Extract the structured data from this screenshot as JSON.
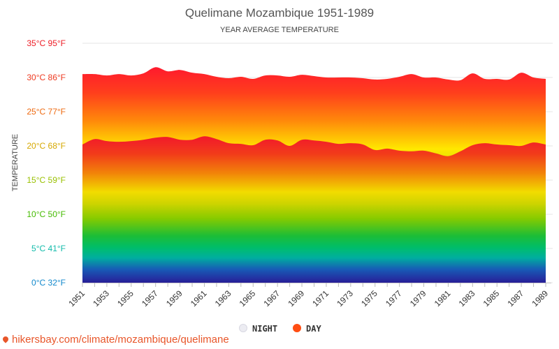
{
  "chart_data": {
    "type": "area",
    "title": "Quelimane Mozambique 1951-1989",
    "subtitle": "YEAR AVERAGE TEMPERATURE",
    "ylabel": "TEMPERATURE",
    "ylim": [
      0,
      35
    ],
    "yticks": [
      {
        "value": 35,
        "label": "35°C 95°F",
        "color": "#ee1c25"
      },
      {
        "value": 30,
        "label": "30°C 86°F",
        "color": "#ee3a20"
      },
      {
        "value": 25,
        "label": "25°C 77°F",
        "color": "#ee6a10"
      },
      {
        "value": 20,
        "label": "20°C 68°F",
        "color": "#d6a800"
      },
      {
        "value": 15,
        "label": "15°C 59°F",
        "color": "#99c000"
      },
      {
        "value": 10,
        "label": "10°C 50°F",
        "color": "#44bb00"
      },
      {
        "value": 5,
        "label": "5°C 41°F",
        "color": "#11bbaa"
      },
      {
        "value": 0,
        "label": "0°C 32°F",
        "color": "#1188cc"
      }
    ],
    "x": [
      1951,
      1952,
      1953,
      1954,
      1955,
      1956,
      1957,
      1958,
      1959,
      1960,
      1961,
      1962,
      1963,
      1964,
      1965,
      1966,
      1967,
      1968,
      1969,
      1970,
      1971,
      1972,
      1973,
      1974,
      1975,
      1976,
      1977,
      1978,
      1979,
      1980,
      1981,
      1982,
      1983,
      1984,
      1985,
      1986,
      1987,
      1988,
      1989
    ],
    "xtick_labels": [
      "1951",
      "1953",
      "1955",
      "1957",
      "1959",
      "1961",
      "1963",
      "1965",
      "1967",
      "1969",
      "1971",
      "1973",
      "1975",
      "1977",
      "1979",
      "1981",
      "1983",
      "1985",
      "1987",
      "1989"
    ],
    "series": [
      {
        "name": "DAY",
        "color": "#ff4d12",
        "values": [
          30.5,
          30.5,
          30.3,
          30.5,
          30.3,
          30.6,
          31.5,
          30.9,
          31.1,
          30.7,
          30.5,
          30.1,
          29.9,
          30.1,
          29.8,
          30.3,
          30.3,
          30.1,
          30.4,
          30.2,
          30.0,
          30.0,
          30.0,
          29.9,
          29.7,
          29.8,
          30.1,
          30.5,
          30.0,
          30.0,
          29.7,
          29.6,
          30.6,
          29.8,
          29.8,
          29.7,
          30.7,
          30.0,
          29.8
        ]
      },
      {
        "name": "NIGHT",
        "color": "#e6e6ee",
        "values": [
          20.2,
          21.0,
          20.7,
          20.6,
          20.7,
          20.9,
          21.2,
          21.3,
          20.9,
          20.9,
          21.4,
          21.0,
          20.4,
          20.3,
          20.1,
          20.9,
          20.8,
          20.0,
          20.9,
          20.8,
          20.6,
          20.3,
          20.4,
          20.2,
          19.4,
          19.6,
          19.3,
          19.2,
          19.3,
          18.9,
          18.5,
          19.2,
          20.1,
          20.4,
          20.2,
          20.1,
          20.0,
          20.5,
          20.2
        ]
      }
    ],
    "legend": {
      "placement": "bottom-center",
      "items": [
        {
          "label": "NIGHT",
          "color": "#e6e6ee"
        },
        {
          "label": "DAY",
          "color": "#ff4d12"
        }
      ]
    },
    "grid": true
  },
  "watermark": "hikersbay.com/climate/mozambique/quelimane"
}
